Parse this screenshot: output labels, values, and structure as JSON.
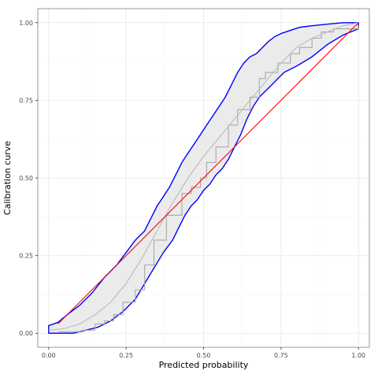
{
  "chart_data": {
    "type": "line",
    "title": "",
    "xlabel": "Predicted probability",
    "ylabel": "Calibration curve",
    "xlim": [
      -0.035,
      1.035
    ],
    "ylim": [
      -0.045,
      1.045
    ],
    "grid": true,
    "legend": "none",
    "x_ticks": [
      {
        "value": 0.0,
        "label": "0.00"
      },
      {
        "value": 0.25,
        "label": "0.25"
      },
      {
        "value": 0.5,
        "label": "0.50"
      },
      {
        "value": 0.75,
        "label": "0.75"
      },
      {
        "value": 1.0,
        "label": "1.00"
      }
    ],
    "y_ticks": [
      {
        "value": 0.0,
        "label": "0.00"
      },
      {
        "value": 0.25,
        "label": "0.25"
      },
      {
        "value": 0.5,
        "label": "0.50"
      },
      {
        "value": 0.75,
        "label": "0.75"
      },
      {
        "value": 1.0,
        "label": "1.00"
      }
    ],
    "colors": {
      "band_fill": "#ebebeb",
      "band_edge": "#0000ff",
      "reference": "#ff0000",
      "smooth": "#bebebe",
      "step": "#a8a8a8",
      "grid_major": "#ebebeb",
      "grid_minor": "#f5f5f5",
      "panel_border": "#7f7f7f"
    },
    "series": [
      {
        "type": "band_upper",
        "x": [
          0.0,
          0.03,
          0.06,
          0.1,
          0.14,
          0.18,
          0.22,
          0.25,
          0.28,
          0.31,
          0.33,
          0.35,
          0.37,
          0.39,
          0.41,
          0.43,
          0.45,
          0.47,
          0.49,
          0.51,
          0.53,
          0.55,
          0.57,
          0.59,
          0.61,
          0.63,
          0.65,
          0.67,
          0.69,
          0.71,
          0.73,
          0.75,
          0.78,
          0.81,
          0.85,
          0.9,
          0.95,
          1.0
        ],
        "y": [
          0.025,
          0.035,
          0.06,
          0.09,
          0.13,
          0.18,
          0.22,
          0.26,
          0.3,
          0.33,
          0.37,
          0.41,
          0.44,
          0.47,
          0.51,
          0.55,
          0.58,
          0.61,
          0.64,
          0.67,
          0.7,
          0.73,
          0.76,
          0.8,
          0.84,
          0.87,
          0.89,
          0.9,
          0.92,
          0.94,
          0.955,
          0.965,
          0.975,
          0.985,
          0.99,
          0.995,
          1.0,
          1.0
        ]
      },
      {
        "type": "band_lower",
        "x": [
          0.0,
          0.08,
          0.12,
          0.16,
          0.2,
          0.24,
          0.28,
          0.31,
          0.34,
          0.37,
          0.4,
          0.42,
          0.44,
          0.46,
          0.48,
          0.5,
          0.52,
          0.54,
          0.56,
          0.58,
          0.6,
          0.62,
          0.64,
          0.66,
          0.68,
          0.7,
          0.72,
          0.74,
          0.76,
          0.8,
          0.85,
          0.9,
          0.95,
          1.0
        ],
        "y": [
          0.0,
          0.0,
          0.01,
          0.02,
          0.04,
          0.07,
          0.11,
          0.16,
          0.21,
          0.26,
          0.3,
          0.34,
          0.38,
          0.41,
          0.43,
          0.46,
          0.48,
          0.51,
          0.53,
          0.56,
          0.6,
          0.64,
          0.69,
          0.73,
          0.76,
          0.78,
          0.8,
          0.82,
          0.84,
          0.86,
          0.89,
          0.93,
          0.96,
          0.98
        ]
      },
      {
        "type": "reference",
        "x": [
          0.03,
          1.0
        ],
        "y": [
          0.03,
          1.0
        ]
      },
      {
        "type": "smooth",
        "x": [
          0.0,
          0.05,
          0.1,
          0.15,
          0.2,
          0.25,
          0.3,
          0.35,
          0.4,
          0.45,
          0.5,
          0.55,
          0.6,
          0.65,
          0.7,
          0.75,
          0.8,
          0.85,
          0.9,
          0.95,
          1.0
        ],
        "y": [
          0.01,
          0.015,
          0.03,
          0.06,
          0.1,
          0.16,
          0.24,
          0.33,
          0.42,
          0.5,
          0.57,
          0.63,
          0.69,
          0.75,
          0.81,
          0.87,
          0.92,
          0.95,
          0.97,
          0.99,
          1.0
        ]
      },
      {
        "type": "step",
        "x": [
          0.03,
          0.11,
          0.15,
          0.18,
          0.21,
          0.24,
          0.28,
          0.31,
          0.34,
          0.38,
          0.43,
          0.46,
          0.49,
          0.51,
          0.54,
          0.58,
          0.61,
          0.65,
          0.68,
          0.7,
          0.74,
          0.78,
          0.81,
          0.85,
          0.88,
          0.92,
          1.0
        ],
        "y": [
          0.005,
          0.01,
          0.03,
          0.04,
          0.06,
          0.1,
          0.14,
          0.22,
          0.3,
          0.38,
          0.45,
          0.47,
          0.5,
          0.55,
          0.6,
          0.67,
          0.72,
          0.76,
          0.82,
          0.84,
          0.87,
          0.9,
          0.92,
          0.95,
          0.97,
          0.98,
          0.99
        ]
      }
    ]
  }
}
